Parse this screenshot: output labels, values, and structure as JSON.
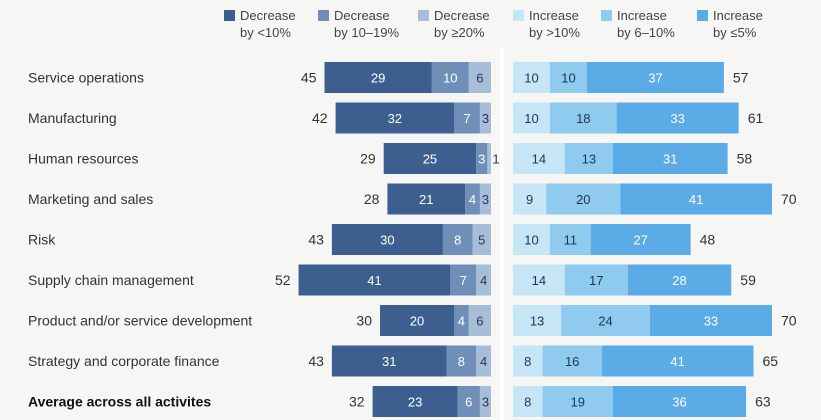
{
  "chart_data": {
    "type": "bar",
    "orientation": "horizontal-diverging",
    "legend_placement": "top",
    "categories": [
      "Service operations",
      "Manufacturing",
      "Human resources",
      "Marketing and sales",
      "Risk",
      "Supply chain management",
      "Product and/or service development",
      "Strategy and corporate finance",
      "Average across all activites"
    ],
    "emphasized_category": "Average across all activites",
    "series": [
      {
        "name": [
          "Decrease",
          "by <10%"
        ],
        "side": "left",
        "color": "#3d5f8f",
        "values": [
          29,
          32,
          25,
          21,
          30,
          41,
          20,
          31,
          23
        ]
      },
      {
        "name": [
          "Decrease",
          "by 10–19%"
        ],
        "side": "left",
        "color": "#6f8fb8",
        "values": [
          10,
          7,
          3,
          4,
          8,
          7,
          4,
          8,
          6
        ]
      },
      {
        "name": [
          "Decrease",
          "by ≥20%"
        ],
        "side": "left",
        "color": "#a8bdd8",
        "values": [
          6,
          3,
          1,
          3,
          5,
          4,
          6,
          4,
          3
        ]
      },
      {
        "name": [
          "Increase",
          "by >10%"
        ],
        "side": "right",
        "color": "#c6e6f7",
        "values": [
          10,
          10,
          14,
          9,
          10,
          14,
          13,
          8,
          8
        ]
      },
      {
        "name": [
          "Increase",
          "by 6–10%"
        ],
        "side": "right",
        "color": "#8fcbef",
        "values": [
          10,
          18,
          13,
          20,
          11,
          17,
          24,
          16,
          19
        ]
      },
      {
        "name": [
          "Increase",
          "by ≤5%"
        ],
        "side": "right",
        "color": "#5aabe6",
        "values": [
          37,
          33,
          31,
          41,
          27,
          28,
          33,
          41,
          36
        ]
      }
    ],
    "decrease_totals": [
      45,
      42,
      29,
      28,
      43,
      52,
      30,
      43,
      32
    ],
    "increase_totals": [
      57,
      61,
      58,
      70,
      48,
      59,
      70,
      65,
      63
    ]
  }
}
